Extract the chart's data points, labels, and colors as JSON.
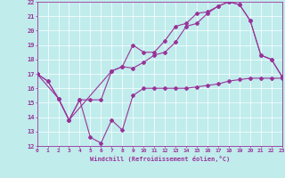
{
  "bg_color": "#c0ecec",
  "line_color": "#993399",
  "xlabel": "Windchill (Refroidissement éolien,°C)",
  "xlim": [
    0,
    23
  ],
  "ylim": [
    12,
    22
  ],
  "xticks": [
    0,
    1,
    2,
    3,
    4,
    5,
    6,
    7,
    8,
    9,
    10,
    11,
    12,
    13,
    14,
    15,
    16,
    17,
    18,
    19,
    20,
    21,
    22,
    23
  ],
  "yticks": [
    12,
    13,
    14,
    15,
    16,
    17,
    18,
    19,
    20,
    21,
    22
  ],
  "line1_x": [
    0,
    1,
    2,
    3,
    4,
    5,
    6,
    7,
    8,
    9,
    10,
    11,
    12,
    13,
    14,
    15,
    16,
    17,
    18,
    19,
    20,
    21,
    22,
    23
  ],
  "line1_y": [
    17.0,
    16.5,
    15.3,
    13.8,
    15.2,
    12.6,
    12.2,
    13.8,
    13.1,
    15.5,
    16.0,
    16.0,
    16.0,
    16.0,
    16.0,
    16.1,
    16.2,
    16.3,
    16.5,
    16.6,
    16.7,
    16.7,
    16.7,
    16.7
  ],
  "line2_x": [
    0,
    1,
    2,
    3,
    7,
    8,
    9,
    10,
    11,
    12,
    13,
    14,
    15,
    16,
    17,
    18,
    19,
    20,
    21,
    22,
    23
  ],
  "line2_y": [
    17.0,
    16.5,
    15.3,
    13.8,
    17.2,
    17.5,
    19.0,
    18.5,
    18.5,
    19.3,
    20.3,
    20.5,
    21.2,
    21.3,
    21.7,
    22.0,
    21.8,
    20.7,
    18.3,
    18.0,
    16.8
  ],
  "line3_x": [
    0,
    2,
    3,
    4,
    5,
    6,
    7,
    8,
    9,
    10,
    11,
    12,
    13,
    14,
    15,
    16,
    17,
    18,
    19,
    20,
    21,
    22,
    23
  ],
  "line3_y": [
    17.0,
    15.3,
    13.8,
    15.2,
    15.2,
    15.2,
    17.2,
    17.5,
    17.4,
    17.8,
    18.3,
    18.5,
    19.2,
    20.3,
    20.5,
    21.2,
    21.7,
    22.0,
    21.8,
    20.7,
    18.3,
    18.0,
    16.8
  ]
}
